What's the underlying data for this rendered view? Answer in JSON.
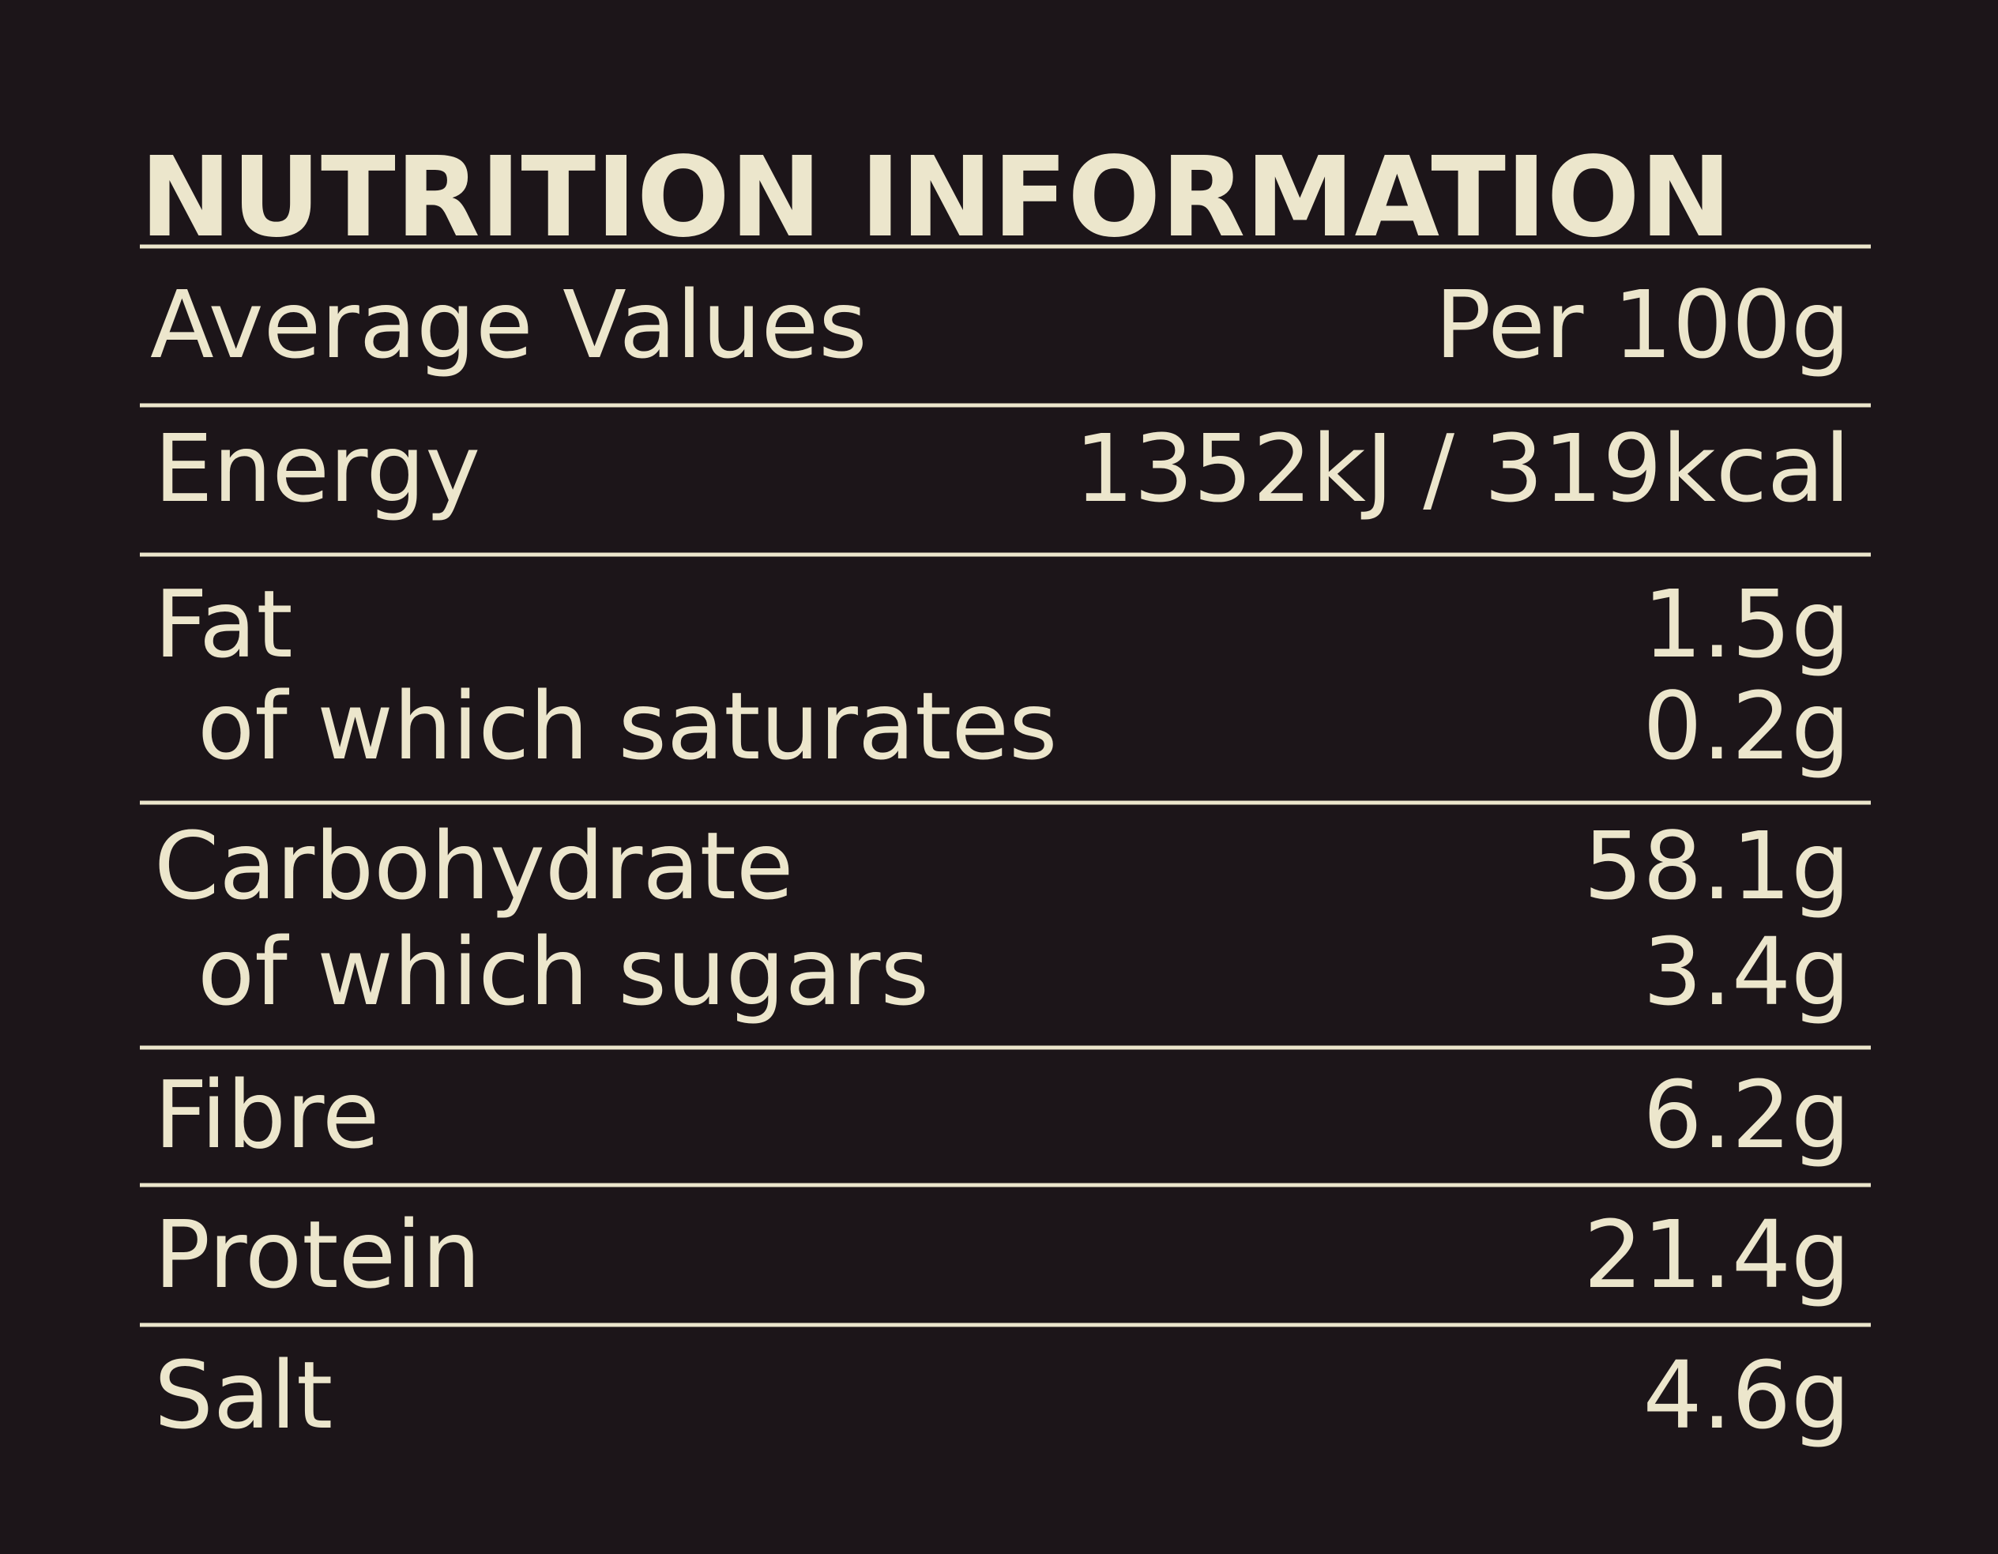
{
  "title": "NUTRITION INFORMATION",
  "header": [
    "Average Values",
    "Per 100g"
  ],
  "sections": [
    {
      "rows": [
        [
          "Energy",
          "1352kJ / 319kcal"
        ]
      ]
    },
    {
      "rows": [
        [
          "Fat",
          "1.5g"
        ],
        [
          "of which saturates",
          "0.2g"
        ]
      ]
    },
    {
      "rows": [
        [
          "Carbohydrate",
          "58.1g"
        ],
        [
          "of which sugars",
          "3.4g"
        ]
      ]
    },
    {
      "rows": [
        [
          "Fibre",
          "6.2g"
        ]
      ]
    },
    {
      "rows": [
        [
          "Protein",
          "21.4g"
        ]
      ]
    },
    {
      "rows": [
        [
          "Salt",
          "4.6g"
        ]
      ]
    }
  ]
}
